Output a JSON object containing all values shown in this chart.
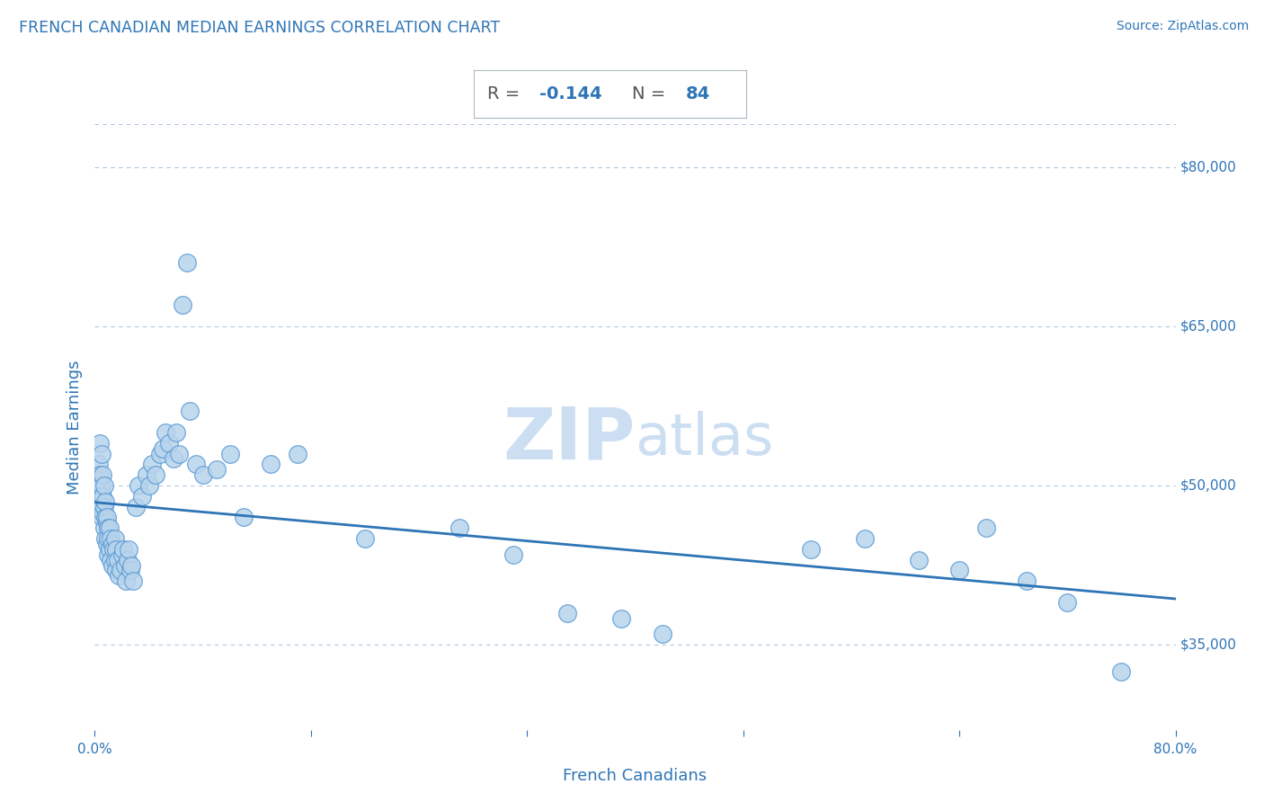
{
  "title": "FRENCH CANADIAN MEDIAN EARNINGS CORRELATION CHART",
  "source": "Source: ZipAtlas.com",
  "xlabel": "French Canadians",
  "ylabel": "Median Earnings",
  "R": -0.144,
  "N": 84,
  "xlim": [
    0.0,
    0.8
  ],
  "ylim": [
    27000,
    84000
  ],
  "scatter_color": "#b8d4ec",
  "scatter_edge_color": "#5b9bd5",
  "line_color": "#2e75b6",
  "title_color": "#2e75b6",
  "annotation_color": "#2e75b6",
  "watermark_color": "#ccdff2",
  "grid_color": "#b0c8dc",
  "background_color": "#ffffff",
  "ytick_values": [
    80000,
    65000,
    50000,
    35000
  ],
  "ytick_labels": [
    "$80,000",
    "$65,000",
    "$50,000",
    "$35,000"
  ],
  "points_x": [
    0.003,
    0.003,
    0.004,
    0.004,
    0.005,
    0.005,
    0.005,
    0.005,
    0.006,
    0.006,
    0.006,
    0.007,
    0.007,
    0.007,
    0.008,
    0.008,
    0.008,
    0.009,
    0.009,
    0.009,
    0.01,
    0.01,
    0.01,
    0.011,
    0.011,
    0.012,
    0.012,
    0.013,
    0.013,
    0.014,
    0.015,
    0.015,
    0.016,
    0.016,
    0.017,
    0.018,
    0.019,
    0.02,
    0.021,
    0.022,
    0.023,
    0.024,
    0.025,
    0.026,
    0.027,
    0.028,
    0.03,
    0.032,
    0.035,
    0.038,
    0.04,
    0.042,
    0.045,
    0.048,
    0.05,
    0.052,
    0.055,
    0.058,
    0.06,
    0.062,
    0.065,
    0.068,
    0.07,
    0.075,
    0.08,
    0.09,
    0.1,
    0.11,
    0.13,
    0.15,
    0.2,
    0.27,
    0.31,
    0.35,
    0.39,
    0.42,
    0.53,
    0.57,
    0.61,
    0.64,
    0.66,
    0.69,
    0.72,
    0.76
  ],
  "points_y": [
    49000,
    52000,
    51000,
    54000,
    50000,
    48000,
    47000,
    53000,
    49000,
    47500,
    51000,
    46000,
    48000,
    50000,
    47000,
    45000,
    48500,
    46500,
    44500,
    47000,
    46000,
    43500,
    45000,
    44000,
    46000,
    43000,
    45000,
    44500,
    42500,
    44000,
    43000,
    45000,
    42000,
    44000,
    43000,
    41500,
    42000,
    43500,
    44000,
    42500,
    41000,
    43000,
    44000,
    42000,
    42500,
    41000,
    48000,
    50000,
    49000,
    51000,
    50000,
    52000,
    51000,
    53000,
    53500,
    55000,
    54000,
    52500,
    55000,
    53000,
    67000,
    71000,
    57000,
    52000,
    51000,
    51500,
    53000,
    47000,
    52000,
    53000,
    45000,
    46000,
    43500,
    38000,
    37500,
    36000,
    44000,
    45000,
    43000,
    42000,
    46000,
    41000,
    39000,
    32500
  ]
}
